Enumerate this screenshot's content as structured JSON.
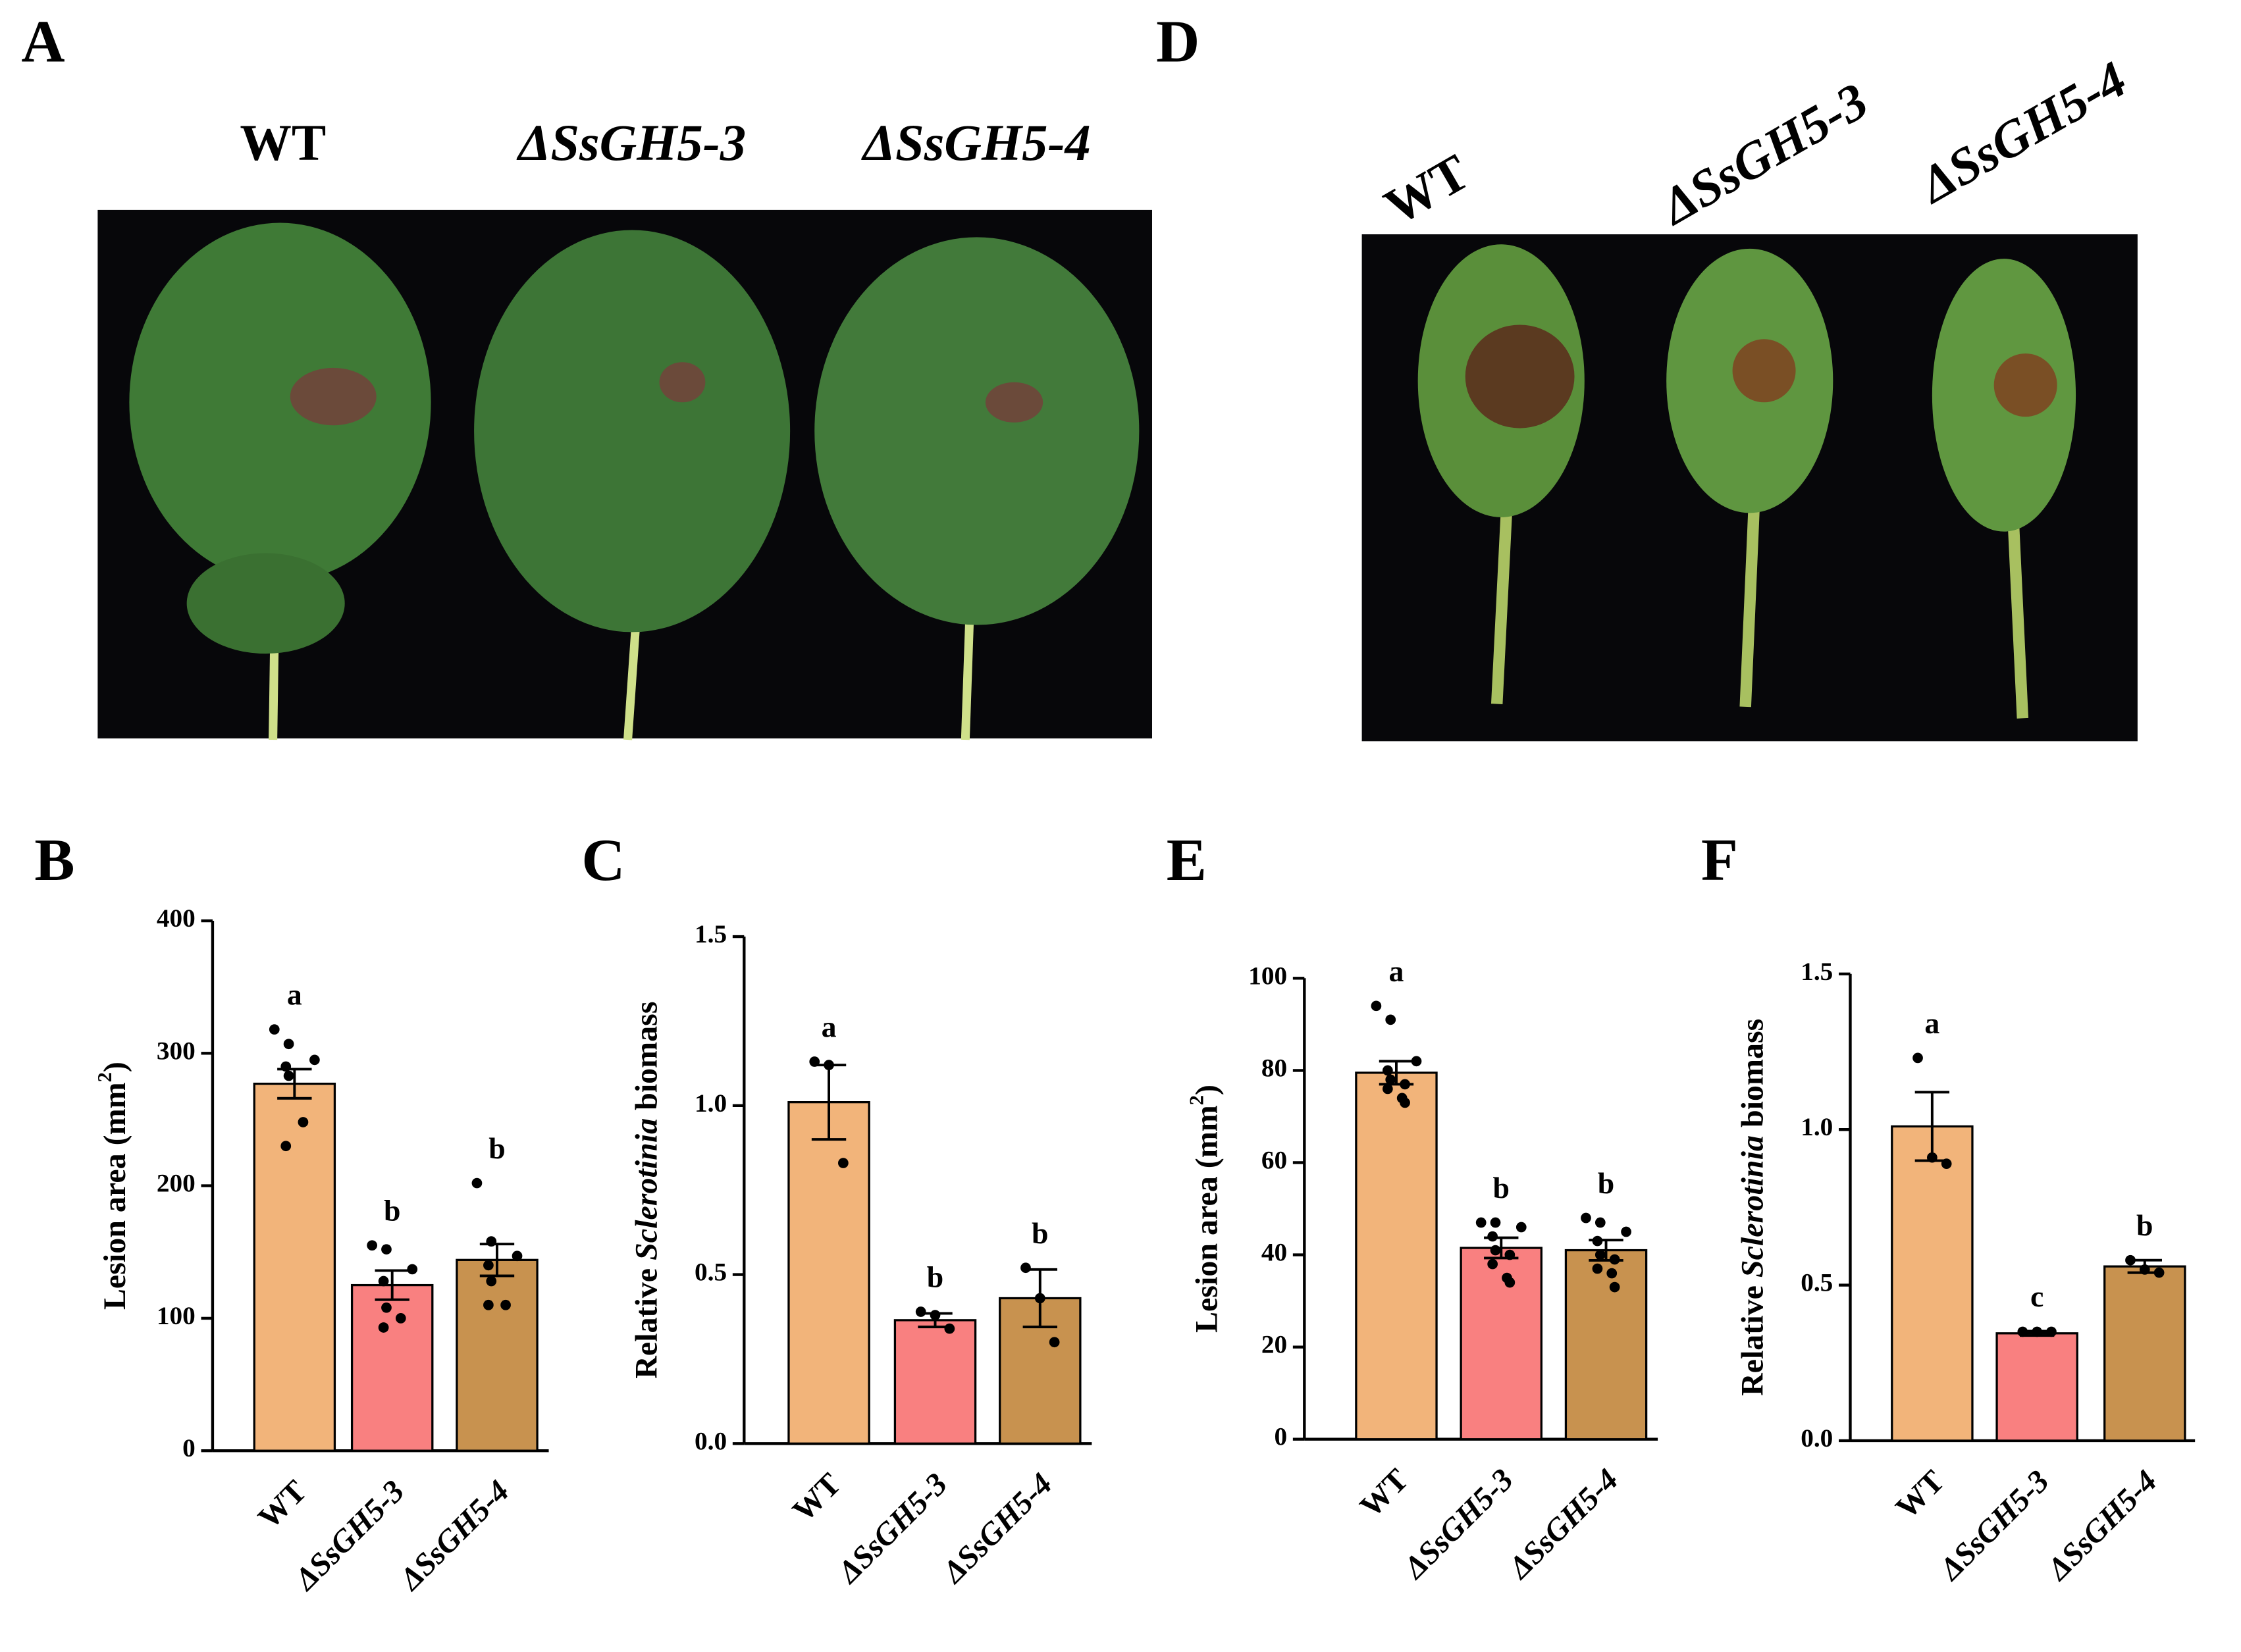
{
  "panel_labels": [
    "A",
    "B",
    "C",
    "D",
    "E",
    "F"
  ],
  "photos": [
    {
      "labels": [
        "WT",
        "ΔSsGH5-3",
        "ΔSsGH5-4"
      ]
    },
    {
      "labels": [
        "WT",
        "ΔSsGH5-3",
        "ΔSsGH5-4"
      ]
    }
  ],
  "chart_data": [
    {
      "type": "bar",
      "y_label": [
        "Lesion area (mm",
        "2",
        ")"
      ],
      "categories": [
        "WT",
        "ΔSsGH5-3",
        "ΔSsGH5-4"
      ],
      "colors": [
        "#f2b47a",
        "#f98080",
        "#c8924f"
      ],
      "values": [
        277,
        125,
        144
      ],
      "errors": [
        11,
        11,
        12
      ],
      "letters": [
        "a",
        "b",
        "b"
      ],
      "points": [
        [
          318,
          307,
          295,
          290,
          283,
          248,
          230
        ],
        [
          155,
          152,
          137,
          128,
          108,
          100,
          93
        ],
        [
          202,
          158,
          147,
          140,
          128,
          110,
          110
        ]
      ],
      "ylim": [
        0,
        400
      ],
      "yticks": [
        0,
        100,
        200,
        300,
        400
      ]
    },
    {
      "type": "bar",
      "y_label": [
        "Relative ",
        "Sclerotinia",
        " biomass"
      ],
      "categories": [
        "WT",
        "ΔSsGH5-3",
        "ΔSsGH5-4"
      ],
      "colors": [
        "#f2b47a",
        "#f98080",
        "#c8924f"
      ],
      "values": [
        1.01,
        0.365,
        0.43
      ],
      "errors": [
        0.11,
        0.02,
        0.085
      ],
      "letters": [
        "a",
        "b",
        "b"
      ],
      "points": [
        [
          1.13,
          1.12,
          0.83
        ],
        [
          0.39,
          0.38,
          0.34
        ],
        [
          0.52,
          0.43,
          0.3
        ]
      ],
      "ylim": [
        0,
        1.5
      ],
      "yticks": [
        {
          "value": 0,
          "label": "0.0"
        },
        0.5,
        {
          "value": 1,
          "label": "1.0"
        },
        1.5
      ]
    },
    {
      "type": "bar",
      "y_label": [
        "Lesion area (mm",
        "2",
        ")"
      ],
      "categories": [
        "WT",
        "ΔSsGH5-3",
        "ΔSsGH5-4"
      ],
      "colors": [
        "#f2b47a",
        "#f98080",
        "#c8924f"
      ],
      "values": [
        79.5,
        41.5,
        41
      ],
      "errors": [
        2.5,
        2.2,
        2.2
      ],
      "letters": [
        "a",
        "b",
        "b"
      ],
      "points": [
        [
          94,
          91,
          82,
          80,
          78,
          77,
          76,
          74,
          73
        ],
        [
          47,
          47,
          46,
          44,
          41,
          40,
          38,
          35,
          34
        ],
        [
          48,
          47,
          45,
          43,
          40,
          39,
          37,
          36,
          33
        ]
      ],
      "ylim": [
        0,
        100
      ],
      "yticks": [
        0,
        20,
        40,
        60,
        80,
        100
      ]
    },
    {
      "type": "bar",
      "y_label": [
        "Relative ",
        "Sclerotinia",
        " biomass"
      ],
      "categories": [
        "WT",
        "ΔSsGH5-3",
        "ΔSsGH5-4"
      ],
      "colors": [
        "#f2b47a",
        "#f98080",
        "#c8924f"
      ],
      "values": [
        1.01,
        0.345,
        0.56
      ],
      "errors": [
        0.11,
        0.007,
        0.02
      ],
      "letters": [
        "a",
        "c",
        "b"
      ],
      "points": [
        [
          1.23,
          0.91,
          0.89
        ],
        [
          0.35,
          0.35,
          0.35
        ],
        [
          0.58,
          0.55,
          0.54
        ]
      ],
      "ylim": [
        0,
        1.5
      ],
      "yticks": [
        {
          "value": 0,
          "label": "0.0"
        },
        0.5,
        {
          "value": 1,
          "label": "1.0"
        },
        1.5
      ]
    }
  ]
}
